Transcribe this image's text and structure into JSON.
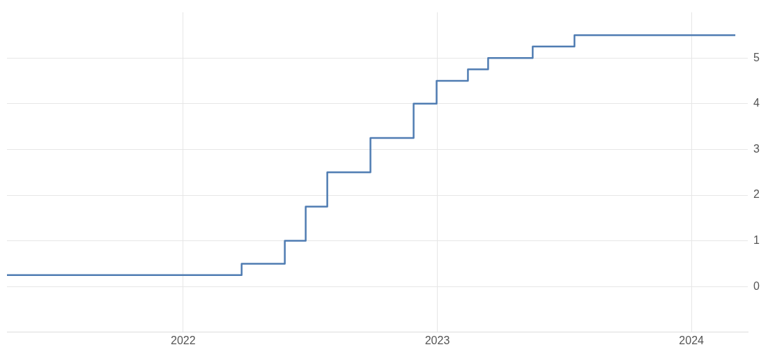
{
  "chart_data": {
    "type": "step",
    "x": [
      "2021-04-23",
      "2022-03-26",
      "2022-05-27",
      "2022-06-26",
      "2022-07-27",
      "2022-09-27",
      "2022-11-28",
      "2022-12-31",
      "2023-02-14",
      "2023-03-15",
      "2023-05-18",
      "2023-07-17",
      "2024-03-04"
    ],
    "series": [
      {
        "color": "#4f7cb2",
        "values": [
          0.25,
          0.5,
          1.0,
          1.75,
          2.5,
          3.25,
          4.0,
          4.5,
          4.75,
          5.0,
          5.25,
          5.5,
          5.5
        ]
      }
    ],
    "xlim": [
      "2021-04-23",
      "2024-03-22"
    ],
    "xticks": [
      "2022",
      "2023",
      "2024"
    ],
    "ylim": [
      -1,
      6
    ],
    "yticks": [
      0,
      1,
      2,
      3,
      4,
      5
    ],
    "grid": true,
    "legend": false,
    "line_style": "solid",
    "marker": "none"
  }
}
